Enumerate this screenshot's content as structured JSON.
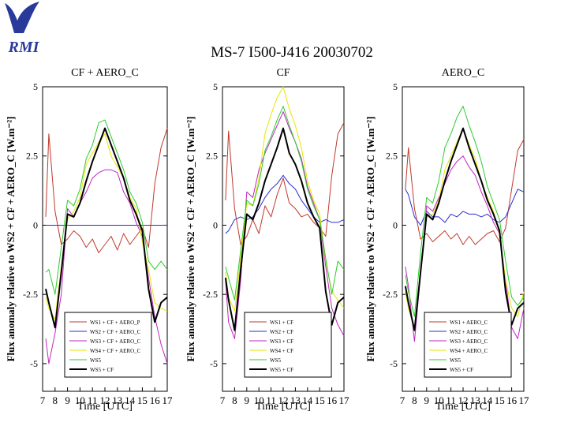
{
  "logo": {
    "text": "RMI",
    "color": "#2a3a9a"
  },
  "title": "MS-7 I500-J416 20030702",
  "chart_data": [
    {
      "type": "line",
      "title": "CF + AERO_C",
      "xlabel": "Time [UTC]",
      "ylabel": "Flux anomaly relative to WS2 + CF + AERO_C [W.m⁻²]",
      "xlim": [
        7,
        17
      ],
      "ylim": [
        -6,
        5
      ],
      "x_ticks": [
        "7",
        "8",
        "9",
        "10",
        "11",
        "12",
        "13",
        "14",
        "15",
        "16",
        "17"
      ],
      "y_ticks": [
        {
          "v": 5,
          "label": "5"
        },
        {
          "v": 2.5,
          "label": "2.5"
        },
        {
          "v": 0,
          "label": "0"
        },
        {
          "v": -2.5,
          "label": "-2.5"
        },
        {
          "v": -5,
          "label": "-5"
        }
      ],
      "x": [
        7.25,
        7.5,
        8,
        8.5,
        9,
        9.5,
        10,
        10.5,
        11,
        11.5,
        12,
        12.5,
        13,
        13.5,
        14,
        14.5,
        15,
        15.5,
        16,
        16.5,
        17
      ],
      "series": [
        {
          "name": "WS1 + CF + AERO_P",
          "color": "#c0392b",
          "width": 1,
          "values": [
            0.3,
            3.3,
            0.5,
            -0.7,
            -0.5,
            -0.2,
            -0.4,
            -0.8,
            -0.5,
            -1.0,
            -0.7,
            -0.4,
            -0.9,
            -0.3,
            -0.7,
            -0.4,
            -0.1,
            -0.8,
            1.5,
            2.8,
            3.5
          ]
        },
        {
          "name": "WS2 + CF + AERO_C",
          "color": "#2c2ccf",
          "width": 1,
          "values": [
            0,
            0,
            0,
            0,
            0,
            0,
            0,
            0,
            0,
            0,
            0,
            0,
            0,
            0,
            0,
            0,
            0,
            0,
            0,
            0,
            0
          ]
        },
        {
          "name": "WS3 + CF + AERO_C",
          "color": "#c026c0",
          "width": 1,
          "values": [
            -4.1,
            -5.0,
            -3.9,
            -2.5,
            0.6,
            0.3,
            0.8,
            1.2,
            1.7,
            1.9,
            2.0,
            2.0,
            1.9,
            1.2,
            0.8,
            0.1,
            -0.4,
            -1.9,
            -3.3,
            -4.3,
            -5.0
          ]
        },
        {
          "name": "WS4 + CF + AERO_C",
          "color": "#e6e600",
          "width": 1,
          "values": [
            -2.6,
            -3.0,
            -3.4,
            -1.5,
            0.2,
            0.5,
            1.0,
            2.2,
            2.6,
            3.0,
            3.3,
            2.5,
            2.1,
            1.7,
            1.0,
            0.6,
            -0.6,
            -1.6,
            -2.8,
            -3.0,
            -3.1
          ]
        },
        {
          "name": "WS5",
          "color": "#2ecc2e",
          "width": 1,
          "values": [
            -1.7,
            -1.6,
            -2.5,
            -0.8,
            0.9,
            0.7,
            1.3,
            2.4,
            2.9,
            3.7,
            3.8,
            3.2,
            2.6,
            2.0,
            1.2,
            0.8,
            0.1,
            -1.3,
            -1.6,
            -1.3,
            -1.6
          ]
        },
        {
          "name": "WS5 + CF",
          "color": "#000000",
          "width": 2,
          "values": [
            -2.3,
            -2.8,
            -3.7,
            -1.7,
            0.4,
            0.3,
            0.8,
            1.6,
            2.3,
            2.9,
            3.5,
            2.9,
            2.3,
            1.7,
            0.9,
            0.4,
            -0.2,
            -2.3,
            -3.5,
            -2.8,
            -2.6
          ]
        }
      ]
    },
    {
      "type": "line",
      "title": "CF",
      "xlabel": "Time [UTC]",
      "ylabel": "Flux anomaly relative to WS2 + CF + AERO_C [W.m⁻²]",
      "xlim": [
        7,
        17
      ],
      "ylim": [
        -6,
        5
      ],
      "x_ticks": [
        "7",
        "8",
        "9",
        "10",
        "11",
        "12",
        "13",
        "14",
        "15",
        "16",
        "17"
      ],
      "y_ticks": [
        {
          "v": 5,
          "label": "5"
        },
        {
          "v": 2.5,
          "label": "2.5"
        },
        {
          "v": 0,
          "label": "0"
        },
        {
          "v": -2.5,
          "label": "-2.5"
        },
        {
          "v": -5,
          "label": "-5"
        }
      ],
      "x": [
        7.25,
        7.5,
        8,
        8.5,
        9,
        9.5,
        10,
        10.5,
        11,
        11.5,
        12,
        12.5,
        13,
        13.5,
        14,
        14.5,
        15,
        15.5,
        16,
        16.5,
        17
      ],
      "series": [
        {
          "name": "WS1 + CF",
          "color": "#c0392b",
          "width": 1,
          "values": [
            0.9,
            3.4,
            0.6,
            -0.7,
            -0.4,
            0.2,
            -0.3,
            0.7,
            0.3,
            1.1,
            1.7,
            0.8,
            0.6,
            0.3,
            0.4,
            0.1,
            -0.1,
            -0.4,
            1.8,
            3.3,
            3.7
          ]
        },
        {
          "name": "WS2 + CF",
          "color": "#2c2ccf",
          "width": 1,
          "values": [
            -0.3,
            -0.2,
            0.2,
            0.3,
            0.2,
            0.3,
            0.6,
            1.0,
            1.3,
            1.5,
            1.8,
            1.5,
            1.3,
            0.9,
            0.6,
            0.3,
            0.1,
            0.2,
            0.1,
            0.1,
            0.2
          ]
        },
        {
          "name": "WS3 + CF",
          "color": "#c026c0",
          "width": 1,
          "values": [
            -2.0,
            -3.5,
            -4.1,
            -2.0,
            1.2,
            1.0,
            2.0,
            2.6,
            3.1,
            3.6,
            4.1,
            3.5,
            3.0,
            2.4,
            1.4,
            0.8,
            0.2,
            -1.5,
            -3.0,
            -3.6,
            -4.0
          ]
        },
        {
          "name": "WS4 + CF",
          "color": "#e6e600",
          "width": 1,
          "values": [
            -1.7,
            -2.6,
            -3.1,
            -1.2,
            0.8,
            0.7,
            1.7,
            3.3,
            4.0,
            4.6,
            5.0,
            4.2,
            3.6,
            2.8,
            1.6,
            0.9,
            0.4,
            -1.3,
            -2.4,
            -2.7,
            -3.0
          ]
        },
        {
          "name": "WS5",
          "color": "#2ecc2e",
          "width": 1,
          "values": [
            -1.5,
            -1.9,
            -2.7,
            -0.9,
            0.9,
            0.7,
            1.5,
            2.7,
            3.2,
            3.8,
            4.3,
            3.6,
            3.0,
            2.3,
            1.3,
            0.7,
            0.2,
            -1.2,
            -2.5,
            -1.3,
            -1.6
          ]
        },
        {
          "name": "WS5 + CF",
          "color": "#000000",
          "width": 2,
          "values": [
            -1.9,
            -2.7,
            -3.8,
            -1.6,
            0.4,
            0.2,
            0.8,
            1.6,
            2.2,
            2.8,
            3.5,
            2.6,
            2.2,
            1.6,
            0.8,
            0.3,
            -0.1,
            -2.4,
            -3.6,
            -2.8,
            -2.6
          ]
        }
      ]
    },
    {
      "type": "line",
      "title": "AERO_C",
      "xlabel": "Time [UTC]",
      "ylabel": "Flux anomaly relative to WS2 + CF + AERO_C [W.m⁻²]",
      "xlim": [
        7,
        17
      ],
      "ylim": [
        -6,
        5
      ],
      "x_ticks": [
        "7",
        "8",
        "9",
        "10",
        "11",
        "12",
        "13",
        "14",
        "15",
        "16",
        "17"
      ],
      "y_ticks": [
        {
          "v": 5,
          "label": "5"
        },
        {
          "v": 2.5,
          "label": "2.5"
        },
        {
          "v": 0,
          "label": "0"
        },
        {
          "v": -2.5,
          "label": "-2.5"
        },
        {
          "v": -5,
          "label": "-5"
        }
      ],
      "x": [
        7.25,
        7.5,
        8,
        8.5,
        9,
        9.5,
        10,
        10.5,
        11,
        11.5,
        12,
        12.5,
        13,
        13.5,
        14,
        14.5,
        15,
        15.5,
        16,
        16.5,
        17
      ],
      "series": [
        {
          "name": "WS1 + AERO_C",
          "color": "#c0392b",
          "width": 1,
          "values": [
            1.3,
            2.8,
            0.6,
            -0.5,
            -0.3,
            -0.6,
            -0.4,
            -0.2,
            -0.5,
            -0.3,
            -0.7,
            -0.4,
            -0.7,
            -0.5,
            -0.3,
            -0.2,
            -0.6,
            -0.1,
            1.3,
            2.7,
            3.1
          ]
        },
        {
          "name": "WS2 + AERO_C",
          "color": "#2c2ccf",
          "width": 1,
          "values": [
            1.3,
            1.1,
            0.3,
            0.0,
            0.5,
            0.3,
            0.3,
            0.1,
            0.4,
            0.3,
            0.5,
            0.4,
            0.4,
            0.3,
            0.4,
            0.2,
            0.1,
            0.3,
            0.8,
            1.3,
            1.2
          ]
        },
        {
          "name": "WS3 + AERO_C",
          "color": "#c026c0",
          "width": 1,
          "values": [
            -1.5,
            -2.2,
            -4.2,
            -1.8,
            0.7,
            0.5,
            1.0,
            1.5,
            2.0,
            2.3,
            2.5,
            2.1,
            1.8,
            1.2,
            0.7,
            0.1,
            -0.3,
            -2.0,
            -3.7,
            -4.1,
            -3.0
          ]
        },
        {
          "name": "WS4 + AERO_C",
          "color": "#e6e600",
          "width": 1,
          "values": [
            -2.4,
            -3.0,
            -3.7,
            -1.6,
            0.3,
            0.4,
            0.9,
            2.0,
            2.5,
            3.0,
            3.5,
            2.9,
            2.4,
            1.6,
            1.0,
            0.5,
            -0.3,
            -2.0,
            -3.0,
            -3.3,
            -2.4
          ]
        },
        {
          "name": "WS5",
          "color": "#2ecc2e",
          "width": 1,
          "values": [
            -1.8,
            -2.4,
            -3.3,
            -1.0,
            1.0,
            0.8,
            1.6,
            2.8,
            3.3,
            3.9,
            4.3,
            3.6,
            3.0,
            2.3,
            1.4,
            0.8,
            0.2,
            -1.3,
            -2.6,
            -2.9,
            -2.6
          ]
        },
        {
          "name": "WS5 + CF",
          "color": "#000000",
          "width": 2,
          "values": [
            -2.2,
            -2.8,
            -3.8,
            -1.7,
            0.4,
            0.2,
            0.8,
            1.6,
            2.3,
            2.9,
            3.5,
            2.8,
            2.2,
            1.6,
            0.9,
            0.4,
            -0.2,
            -2.4,
            -3.6,
            -3.0,
            -2.8
          ]
        }
      ]
    }
  ]
}
